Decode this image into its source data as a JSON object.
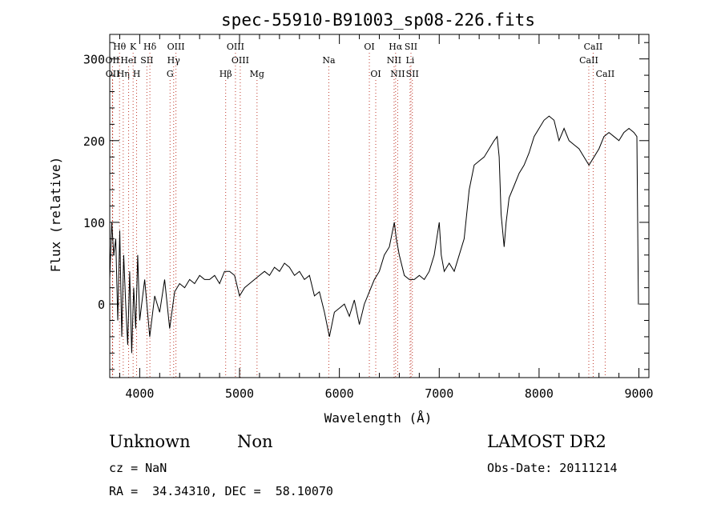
{
  "chart_data": {
    "type": "line",
    "title": "spec-55910-B91003_sp08-226.fits",
    "xlabel": "Wavelength (Å)",
    "ylabel": "Flux (relative)",
    "xlim": [
      3700,
      9100
    ],
    "ylim": [
      -90,
      330
    ],
    "xticks": [
      4000,
      5000,
      6000,
      7000,
      8000,
      9000
    ],
    "yticks": [
      0,
      100,
      200,
      300
    ],
    "line_color": "#000000",
    "marker_color": "#c0392b",
    "series": [
      {
        "x": [
          3700,
          3720,
          3740,
          3760,
          3780,
          3800,
          3820,
          3840,
          3860,
          3880,
          3900,
          3920,
          3940,
          3960,
          3980,
          4000,
          4050,
          4100,
          4150,
          4200,
          4250,
          4300,
          4350,
          4400,
          4450,
          4500,
          4550,
          4600,
          4650,
          4700,
          4750,
          4800,
          4850,
          4900,
          4950,
          5000,
          5050,
          5100,
          5150,
          5200,
          5250,
          5300,
          5350,
          5400,
          5450,
          5500,
          5550,
          5600,
          5650,
          5700,
          5750,
          5800,
          5850,
          5900,
          5950,
          6000,
          6050,
          6100,
          6150,
          6200,
          6250,
          6300,
          6350,
          6400,
          6450,
          6500,
          6550,
          6570,
          6600,
          6650,
          6700,
          6750,
          6800,
          6850,
          6900,
          6950,
          7000,
          7020,
          7050,
          7100,
          7150,
          7200,
          7250,
          7300,
          7350,
          7400,
          7450,
          7500,
          7550,
          7580,
          7600,
          7620,
          7650,
          7670,
          7700,
          7750,
          7800,
          7850,
          7900,
          7950,
          8000,
          8050,
          8100,
          8150,
          8200,
          8250,
          8300,
          8350,
          8400,
          8450,
          8500,
          8550,
          8600,
          8650,
          8700,
          8750,
          8800,
          8850,
          8900,
          8950,
          8980,
          8995,
          9000
        ],
        "values": [
          30,
          100,
          60,
          80,
          -20,
          90,
          -40,
          60,
          0,
          -50,
          40,
          -60,
          20,
          -30,
          60,
          -20,
          30,
          -40,
          10,
          -10,
          30,
          -30,
          15,
          25,
          20,
          30,
          25,
          35,
          30,
          30,
          35,
          25,
          40,
          40,
          35,
          10,
          20,
          25,
          30,
          35,
          40,
          35,
          45,
          40,
          50,
          45,
          35,
          40,
          30,
          35,
          10,
          15,
          -10,
          -40,
          -10,
          -5,
          0,
          -15,
          5,
          -25,
          0,
          15,
          30,
          40,
          60,
          70,
          100,
          80,
          60,
          35,
          30,
          30,
          35,
          30,
          40,
          60,
          100,
          60,
          40,
          50,
          40,
          60,
          80,
          140,
          170,
          175,
          180,
          190,
          200,
          205,
          180,
          110,
          70,
          100,
          130,
          145,
          160,
          170,
          185,
          205,
          215,
          225,
          230,
          225,
          200,
          215,
          200,
          195,
          190,
          180,
          170,
          180,
          190,
          205,
          210,
          205,
          200,
          210,
          215,
          210,
          205,
          0,
          0
        ]
      }
    ],
    "line_markers": [
      {
        "label": "Hθ",
        "x": 3798,
        "row": 1
      },
      {
        "label": "OII",
        "x": 3727,
        "row": 2
      },
      {
        "label": "OII",
        "x": 3729,
        "row": 3
      },
      {
        "label": "Hη",
        "x": 3835,
        "row": 3
      },
      {
        "label": "K",
        "x": 3934,
        "row": 1
      },
      {
        "label": "HeI",
        "x": 3889,
        "row": 2
      },
      {
        "label": "SII",
        "x": 4072,
        "row": 2
      },
      {
        "label": "H",
        "x": 3969,
        "row": 3
      },
      {
        "label": "Hδ",
        "x": 4102,
        "row": 1
      },
      {
        "label": "OIII",
        "x": 4363,
        "row": 1
      },
      {
        "label": "Hγ",
        "x": 4340,
        "row": 2
      },
      {
        "label": "G",
        "x": 4304,
        "row": 3
      },
      {
        "label": "OIII",
        "x": 4959,
        "row": 1
      },
      {
        "label": "OIII",
        "x": 5007,
        "row": 2
      },
      {
        "label": "Hβ",
        "x": 4861,
        "row": 3
      },
      {
        "label": "Mg",
        "x": 5175,
        "row": 3
      },
      {
        "label": "Na",
        "x": 5894,
        "row": 2
      },
      {
        "label": "OI",
        "x": 6300,
        "row": 1
      },
      {
        "label": "OI",
        "x": 6364,
        "row": 3
      },
      {
        "label": "Hα",
        "x": 6563,
        "row": 1
      },
      {
        "label": "SII",
        "x": 6717,
        "row": 1
      },
      {
        "label": "NII",
        "x": 6548,
        "row": 2
      },
      {
        "label": "Li",
        "x": 6708,
        "row": 2
      },
      {
        "label": "NII",
        "x": 6584,
        "row": 3
      },
      {
        "label": "SII",
        "x": 6731,
        "row": 3
      },
      {
        "label": "CaII",
        "x": 8542,
        "row": 1
      },
      {
        "label": "CaII",
        "x": 8498,
        "row": 2
      },
      {
        "label": "CaII",
        "x": 8662,
        "row": 3
      }
    ]
  },
  "info": {
    "class": "Unknown",
    "subclass": "Non",
    "cz": "cz = NaN",
    "radec": "RA =  34.34310, DEC =  58.10070",
    "survey": "LAMOST DR2",
    "obsdate": "Obs-Date: 20111214"
  }
}
